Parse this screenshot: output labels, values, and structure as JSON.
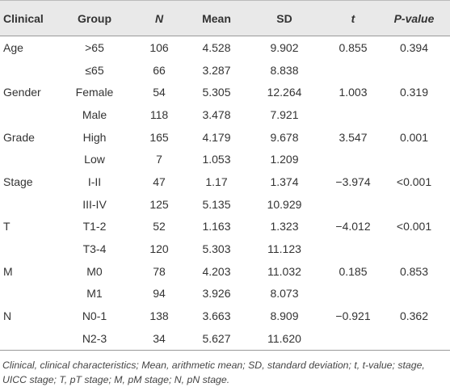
{
  "table": {
    "header": [
      "Clinical",
      "Group",
      "N",
      "Mean",
      "SD",
      "t",
      "P-value"
    ],
    "rows": [
      {
        "clinical": "Age",
        "group": ">65",
        "n": "106",
        "mean": "4.528",
        "sd": "9.902",
        "t": "0.855",
        "p": "0.394"
      },
      {
        "group": "≤65",
        "n": "66",
        "mean": "3.287",
        "sd": "8.838"
      },
      {
        "clinical": "Gender",
        "group": "Female",
        "n": "54",
        "mean": "5.305",
        "sd": "12.264",
        "t": "1.003",
        "p": "0.319"
      },
      {
        "group": "Male",
        "n": "118",
        "mean": "3.478",
        "sd": "7.921"
      },
      {
        "clinical": "Grade",
        "group": "High",
        "n": "165",
        "mean": "4.179",
        "sd": "9.678",
        "t": "3.547",
        "p": "0.001"
      },
      {
        "group": "Low",
        "n": "7",
        "mean": "1.053",
        "sd": "1.209"
      },
      {
        "clinical": "Stage",
        "group": "I-II",
        "n": "47",
        "mean": "1.17",
        "sd": "1.374",
        "t": "−3.974",
        "p": "<0.001"
      },
      {
        "group": "III-IV",
        "n": "125",
        "mean": "5.135",
        "sd": "10.929"
      },
      {
        "clinical": "T",
        "group": "T1-2",
        "n": "52",
        "mean": "1.163",
        "sd": "1.323",
        "t": "−4.012",
        "p": "<0.001"
      },
      {
        "group": "T3-4",
        "n": "120",
        "mean": "5.303",
        "sd": "11.123"
      },
      {
        "clinical": "M",
        "group": "M0",
        "n": "78",
        "mean": "4.203",
        "sd": "11.032",
        "t": "0.185",
        "p": "0.853"
      },
      {
        "group": "M1",
        "n": "94",
        "mean": "3.926",
        "sd": "8.073"
      },
      {
        "clinical": "N",
        "group": "N0-1",
        "n": "138",
        "mean": "3.663",
        "sd": "8.909",
        "t": "−0.921",
        "p": "0.362"
      },
      {
        "group": "N2-3",
        "n": "34",
        "mean": "5.627",
        "sd": "11.620"
      }
    ],
    "footnote": "Clinical, clinical characteristics; Mean, arithmetic mean; SD, standard deviation; t, t-value; stage, UICC stage; T, pT stage; M, pM stage; N, pN stage."
  }
}
